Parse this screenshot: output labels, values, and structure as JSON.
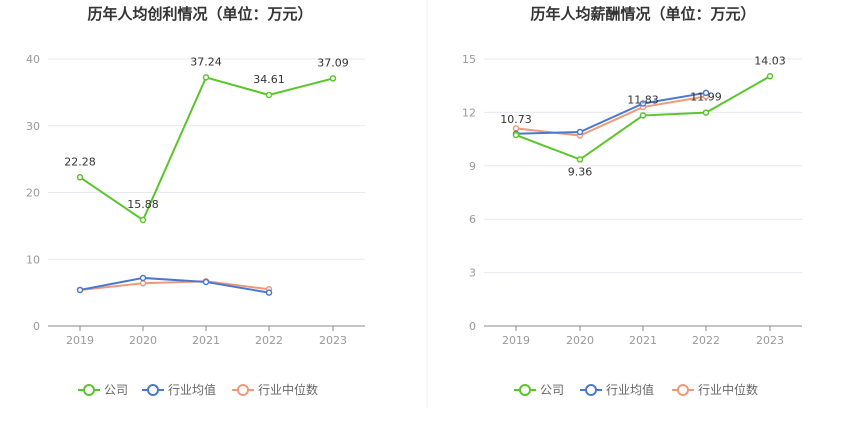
{
  "chart_data": [
    {
      "type": "line",
      "title": "历年人均创利情况（单位：万元）",
      "categories": [
        "2019",
        "2020",
        "2021",
        "2022",
        "2023"
      ],
      "ylim": [
        0,
        40
      ],
      "yticks": [
        0,
        10,
        20,
        30,
        40
      ],
      "grid": true,
      "legend_placement": "bottom",
      "series": [
        {
          "name": "公司",
          "color": "#5ac52a",
          "values": [
            22.28,
            15.88,
            37.24,
            34.61,
            37.09
          ],
          "labels": true
        },
        {
          "name": "行业均值",
          "color": "#4a78d0",
          "values": [
            5.4,
            7.2,
            6.6,
            5.0,
            null
          ],
          "labels": false
        },
        {
          "name": "行业中位数",
          "color": "#f0997a",
          "values": [
            5.4,
            6.4,
            6.7,
            5.5,
            null
          ],
          "labels": false
        }
      ]
    },
    {
      "type": "line",
      "title": "历年人均薪酬情况（单位：万元）",
      "categories": [
        "2019",
        "2020",
        "2021",
        "2022",
        "2023"
      ],
      "ylim": [
        0,
        15
      ],
      "yticks": [
        0,
        3,
        6,
        9,
        12,
        15
      ],
      "grid": true,
      "legend_placement": "bottom",
      "series": [
        {
          "name": "公司",
          "color": "#5ac52a",
          "values": [
            10.73,
            9.36,
            11.83,
            11.99,
            14.03
          ],
          "labels": true
        },
        {
          "name": "行业均值",
          "color": "#4a78d0",
          "values": [
            10.8,
            10.9,
            12.5,
            13.1,
            null
          ],
          "labels": false
        },
        {
          "name": "行业中位数",
          "color": "#f0997a",
          "values": [
            11.1,
            10.7,
            12.3,
            12.9,
            null
          ],
          "labels": false
        }
      ]
    }
  ]
}
